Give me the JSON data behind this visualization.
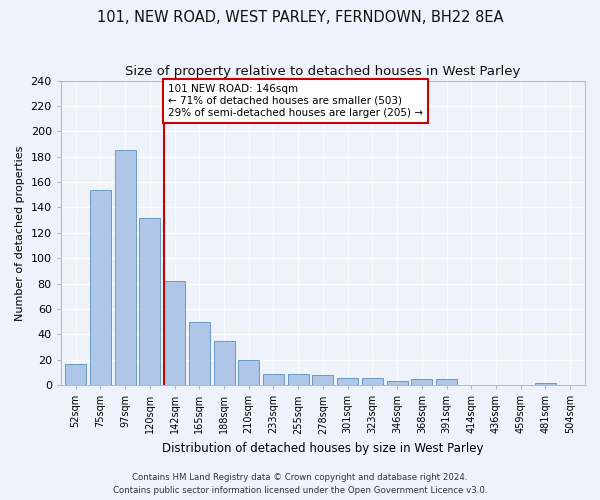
{
  "title1": "101, NEW ROAD, WEST PARLEY, FERNDOWN, BH22 8EA",
  "title2": "Size of property relative to detached houses in West Parley",
  "xlabel": "Distribution of detached houses by size in West Parley",
  "ylabel": "Number of detached properties",
  "bar_categories": [
    "52sqm",
    "75sqm",
    "97sqm",
    "120sqm",
    "142sqm",
    "165sqm",
    "188sqm",
    "210sqm",
    "233sqm",
    "255sqm",
    "278sqm",
    "301sqm",
    "323sqm",
    "346sqm",
    "368sqm",
    "391sqm",
    "414sqm",
    "436sqm",
    "459sqm",
    "481sqm",
    "504sqm"
  ],
  "bar_values": [
    17,
    154,
    185,
    132,
    82,
    50,
    35,
    20,
    9,
    9,
    8,
    6,
    6,
    3,
    5,
    5,
    0,
    0,
    0,
    2,
    0
  ],
  "bar_color": "#aec6e8",
  "bar_edge_color": "#5a8fc0",
  "annotation_line1": "101 NEW ROAD: 146sqm",
  "annotation_line2": "← 71% of detached houses are smaller (503)",
  "annotation_line3": "29% of semi-detached houses are larger (205) →",
  "annotation_box_color": "#ffffff",
  "annotation_box_edge": "#cc0000",
  "vline_color": "#cc0000",
  "ylim": [
    0,
    240
  ],
  "yticks": [
    0,
    20,
    40,
    60,
    80,
    100,
    120,
    140,
    160,
    180,
    200,
    220,
    240
  ],
  "footer1": "Contains HM Land Registry data © Crown copyright and database right 2024.",
  "footer2": "Contains public sector information licensed under the Open Government Licence v3.0.",
  "background_color": "#eef2fb",
  "grid_color": "#ffffff",
  "title1_fontsize": 10.5,
  "title2_fontsize": 9.5
}
